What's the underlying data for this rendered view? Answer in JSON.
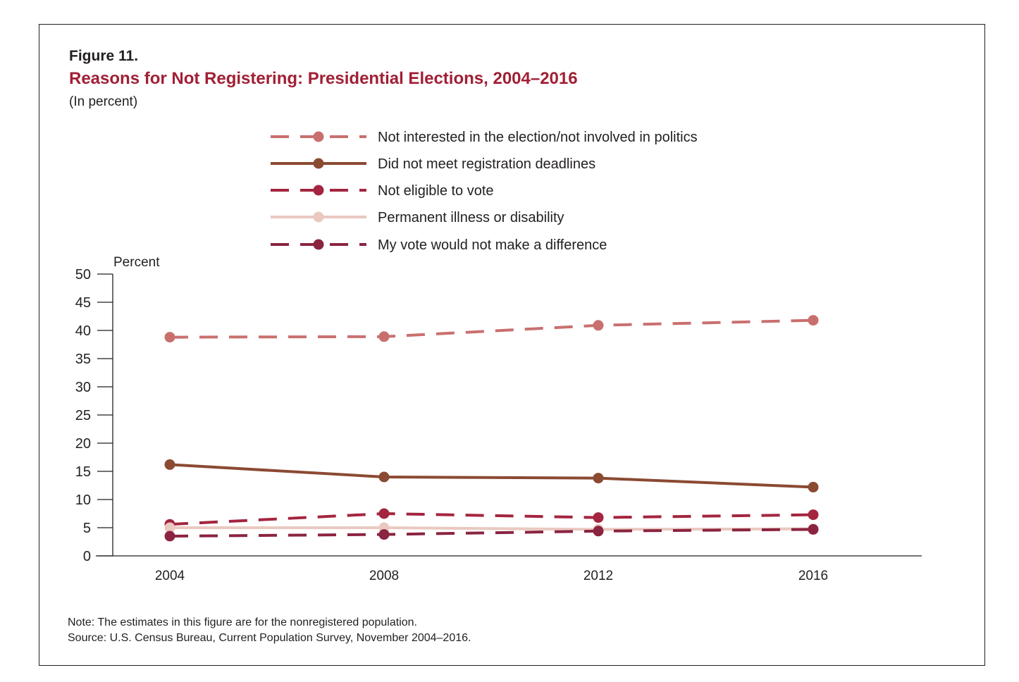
{
  "figure": {
    "label": "Figure 11.",
    "title": "Reasons for Not Registering: Presidential Elections, 2004–2016",
    "subtitle": "(In percent)",
    "note": "Note: The estimates in this figure are for the nonregistered population.",
    "source": "Source: U.S. Census Bureau, Current Population Survey, November 2004–2016."
  },
  "colors": {
    "not_interested": "#c9706f",
    "deadlines": "#8b4a32",
    "not_eligible": "#a3253f",
    "illness": "#e9c9c0",
    "vote_no_difference": "#8a2440"
  },
  "chart_data": {
    "type": "line",
    "ylabel": "Percent",
    "xlabel": "",
    "x": [
      "2004",
      "2008",
      "2012",
      "2016"
    ],
    "ylim": [
      0,
      50
    ],
    "yticks": [
      0,
      5,
      10,
      15,
      20,
      25,
      30,
      35,
      40,
      45,
      50
    ],
    "grid": false,
    "legend_position": "top",
    "series": [
      {
        "name": "Not interested in the election/not involved in politics",
        "style": "dashed",
        "color_key": "not_interested",
        "values": [
          38.8,
          38.9,
          40.9,
          41.8
        ]
      },
      {
        "name": "Did not meet registration deadlines",
        "style": "solid",
        "color_key": "deadlines",
        "values": [
          16.2,
          14.0,
          13.8,
          12.2
        ]
      },
      {
        "name": "Not eligible to vote",
        "style": "dashed",
        "color_key": "not_eligible",
        "values": [
          5.6,
          7.5,
          6.8,
          7.3
        ]
      },
      {
        "name": "Permanent illness or disability",
        "style": "solid",
        "color_key": "illness",
        "values": [
          5.0,
          5.0,
          4.7,
          4.8
        ]
      },
      {
        "name": "My vote would not make a difference",
        "style": "dashed",
        "color_key": "vote_no_difference",
        "values": [
          3.5,
          3.8,
          4.4,
          4.7
        ]
      }
    ]
  }
}
